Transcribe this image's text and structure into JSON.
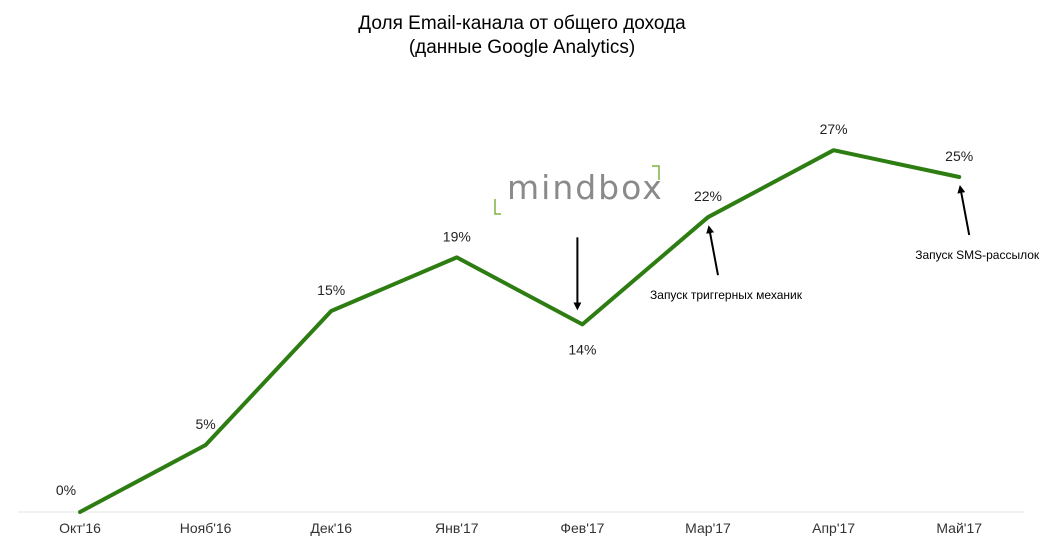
{
  "chart_data": {
    "type": "line",
    "title": "Доля Email-канала от общего дохода",
    "subtitle": "(данные Google Analytics)",
    "categories": [
      "Окт'16",
      "Нояб'16",
      "Дек'16",
      "Янв'17",
      "Фев'17",
      "Мар'17",
      "Апр'17",
      "Май'17"
    ],
    "series": [
      {
        "values": [
          0,
          5,
          15,
          19,
          14,
          22,
          27,
          25
        ],
        "labels": [
          "0%",
          "5%",
          "15%",
          "19%",
          "14%",
          "22%",
          "27%",
          "25%"
        ],
        "color": "#2e7d12"
      }
    ],
    "ylim": [
      0,
      30
    ],
    "grid": false,
    "annotations": [
      {
        "text": "Запуск триггерных механик",
        "category": "Мар'17",
        "value": 22
      },
      {
        "text": "Запуск SMS-рассылок",
        "category": "Май'17",
        "value": 25
      },
      {
        "text": "",
        "category": "Фев'17",
        "value": 14
      }
    ]
  },
  "logo": {
    "text": "mindbox",
    "bracket_color": "#7fb241"
  }
}
